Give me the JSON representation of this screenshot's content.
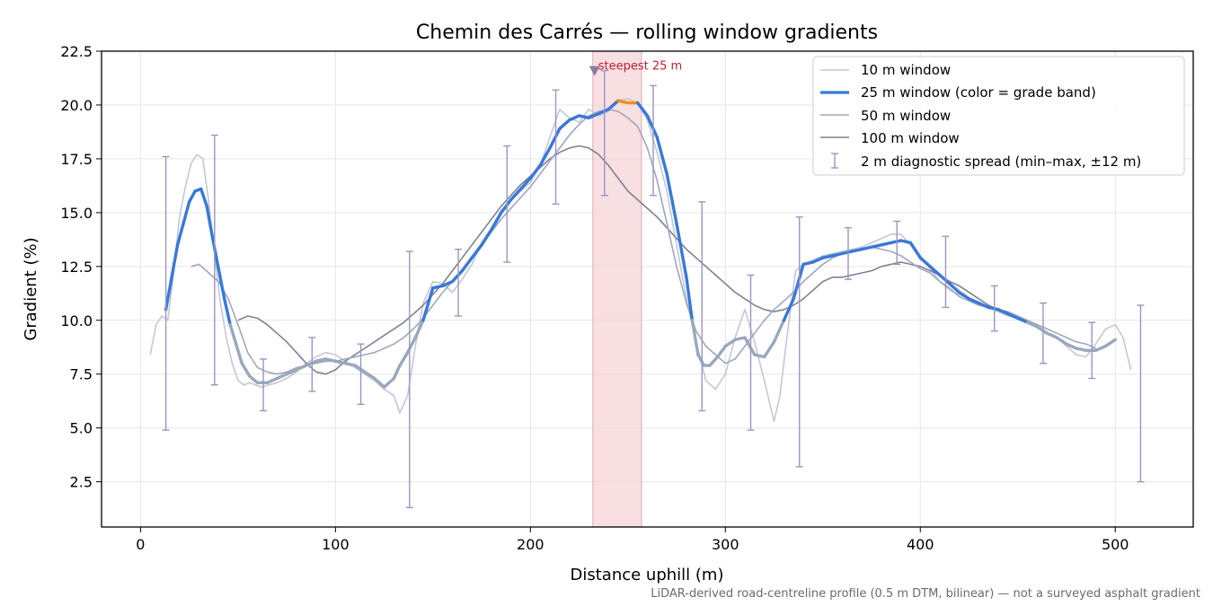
{
  "chart_data": {
    "type": "line",
    "title": "Chemin des Carrés — rolling window gradients",
    "xlabel": "Distance uphill (m)",
    "ylabel": "Gradient (%)",
    "xlim": [
      -20,
      540
    ],
    "ylim": [
      0.4,
      22.5
    ],
    "xticks": [
      0,
      100,
      200,
      300,
      400,
      500
    ],
    "yticks": [
      2.5,
      5.0,
      7.5,
      10.0,
      12.5,
      15.0,
      17.5,
      20.0,
      22.5
    ],
    "grid": true,
    "legend_position": "top-right",
    "caption": "LiDAR-derived road-centreline profile (0.5 m DTM, bilinear) — not a surveyed asphalt gradient",
    "colors": {
      "w10": "#c2c8d4",
      "w25_steep": "#3a78d8",
      "w25_moderate": "#9aa8bd",
      "w25_peak": "#f0900a",
      "w50": "#9ea8bc",
      "w100": "#7e8292",
      "errorbar": "#9a96c0",
      "highlight": "#f4d4d8",
      "highlight_edge": "#e6aab4",
      "annotation": "#c0202e",
      "marker": "#8e7aa0"
    },
    "highlight_band": {
      "x0": 232,
      "x1": 257,
      "label": "steepest 25 m",
      "marker_y": 21.6
    },
    "series": [
      {
        "name": "10 m window",
        "key": "w10",
        "x": [
          5,
          8,
          11,
          14,
          17,
          20,
          23,
          26,
          29,
          32,
          35,
          38,
          41,
          44,
          47,
          50,
          53,
          56,
          59,
          62,
          66,
          70,
          75,
          80,
          85,
          90,
          95,
          100,
          105,
          110,
          115,
          120,
          125,
          130,
          133,
          137,
          141,
          145,
          150,
          155,
          160,
          165,
          170,
          175,
          180,
          185,
          190,
          195,
          200,
          205,
          210,
          215,
          220,
          225,
          230,
          235,
          240,
          245,
          250,
          255,
          260,
          265,
          270,
          275,
          280,
          285,
          290,
          295,
          300,
          305,
          310,
          315,
          320,
          325,
          328,
          332,
          336,
          340,
          345,
          350,
          355,
          360,
          365,
          370,
          375,
          380,
          385,
          390,
          395,
          400,
          405,
          410,
          415,
          420,
          425,
          430,
          435,
          440,
          445,
          450,
          455,
          460,
          465,
          470,
          475,
          480,
          485,
          490,
          495,
          500,
          504,
          508
        ],
        "y": [
          8.4,
          9.8,
          10.2,
          10.0,
          12.2,
          14.8,
          16.2,
          17.3,
          17.7,
          17.5,
          15.5,
          13.0,
          10.8,
          9.2,
          8.0,
          7.2,
          7.0,
          7.1,
          7.0,
          6.9,
          7.0,
          7.1,
          7.3,
          7.6,
          8.0,
          8.3,
          8.5,
          8.4,
          8.1,
          7.8,
          7.5,
          7.2,
          6.8,
          6.5,
          5.7,
          6.5,
          8.8,
          10.8,
          11.8,
          11.7,
          11.3,
          11.9,
          12.6,
          13.6,
          14.3,
          15.1,
          15.6,
          16.0,
          16.4,
          17.2,
          18.5,
          19.8,
          19.4,
          19.2,
          19.8,
          19.5,
          19.7,
          20.2,
          20.3,
          20.1,
          19.3,
          17.8,
          16.0,
          13.5,
          11.0,
          9.0,
          7.2,
          6.8,
          7.5,
          9.2,
          10.5,
          9.0,
          7.2,
          5.3,
          6.5,
          9.5,
          12.3,
          12.6,
          12.8,
          13.0,
          13.1,
          13.2,
          13.3,
          13.4,
          13.6,
          13.8,
          14.0,
          14.0,
          13.5,
          13.0,
          12.4,
          11.8,
          11.4,
          11.2,
          11.0,
          10.8,
          10.6,
          10.4,
          10.2,
          10.1,
          9.9,
          9.7,
          9.4,
          9.2,
          8.8,
          8.4,
          8.3,
          8.9,
          9.6,
          9.8,
          9.2,
          7.7
        ]
      },
      {
        "name": "25 m window (color = grade band)",
        "key": "w25",
        "x": [
          13,
          16,
          19,
          22,
          25,
          28,
          31,
          34,
          37,
          40,
          43,
          46,
          49,
          52,
          56,
          60,
          65,
          70,
          75,
          80,
          85,
          90,
          95,
          100,
          105,
          110,
          115,
          120,
          125,
          130,
          133,
          137,
          141,
          145,
          150,
          155,
          160,
          165,
          170,
          175,
          180,
          185,
          190,
          195,
          200,
          205,
          210,
          215,
          220,
          225,
          230,
          235,
          240,
          245,
          250,
          255,
          260,
          265,
          270,
          275,
          280,
          283,
          286,
          289,
          292,
          296,
          300,
          305,
          310,
          315,
          320,
          325,
          330,
          335,
          340,
          345,
          350,
          355,
          360,
          365,
          370,
          375,
          380,
          385,
          390,
          395,
          400,
          405,
          410,
          415,
          420,
          425,
          430,
          435,
          440,
          445,
          450,
          455,
          460,
          465,
          470,
          475,
          480,
          485,
          490,
          495,
          500
        ],
        "y": [
          10.5,
          12.0,
          13.5,
          14.5,
          15.5,
          16.0,
          16.1,
          15.3,
          13.8,
          12.4,
          11.0,
          9.8,
          8.9,
          8.0,
          7.4,
          7.1,
          7.1,
          7.3,
          7.5,
          7.7,
          7.9,
          8.1,
          8.2,
          8.1,
          8.0,
          7.9,
          7.6,
          7.3,
          6.9,
          7.3,
          7.9,
          8.5,
          9.2,
          10.0,
          11.5,
          11.6,
          11.8,
          12.3,
          12.9,
          13.5,
          14.2,
          15.0,
          15.6,
          16.1,
          16.6,
          17.2,
          18.0,
          18.9,
          19.3,
          19.5,
          19.4,
          19.6,
          19.8,
          20.2,
          20.1,
          20.1,
          19.5,
          18.5,
          16.8,
          14.5,
          12.0,
          10.0,
          8.4,
          7.9,
          7.9,
          8.3,
          8.8,
          9.1,
          9.2,
          8.4,
          8.3,
          9.0,
          10.0,
          11.0,
          12.6,
          12.7,
          12.9,
          13.0,
          13.1,
          13.2,
          13.3,
          13.4,
          13.5,
          13.6,
          13.7,
          13.6,
          12.9,
          12.5,
          12.1,
          11.7,
          11.3,
          11.0,
          10.8,
          10.6,
          10.5,
          10.3,
          10.1,
          9.9,
          9.7,
          9.4,
          9.2,
          8.9,
          8.7,
          8.6,
          8.6,
          8.8,
          9.1
        ]
      },
      {
        "name": "50 m window",
        "key": "w50",
        "x": [
          26,
          30,
          35,
          40,
          45,
          50,
          55,
          60,
          65,
          70,
          75,
          80,
          85,
          90,
          95,
          100,
          105,
          110,
          115,
          120,
          125,
          130,
          135,
          140,
          145,
          150,
          155,
          160,
          165,
          170,
          175,
          180,
          185,
          190,
          195,
          200,
          205,
          210,
          215,
          220,
          225,
          230,
          235,
          240,
          245,
          250,
          255,
          260,
          265,
          270,
          275,
          280,
          285,
          290,
          295,
          300,
          305,
          310,
          315,
          320,
          325,
          330,
          335,
          340,
          345,
          350,
          355,
          360,
          365,
          370,
          375,
          380,
          385,
          390,
          395,
          400,
          405,
          410,
          415,
          420,
          425,
          430,
          435,
          440,
          445,
          450,
          455,
          460,
          465,
          470,
          475,
          480,
          485,
          490
        ],
        "y": [
          12.5,
          12.6,
          12.2,
          11.8,
          11.0,
          9.8,
          8.5,
          7.8,
          7.6,
          7.5,
          7.6,
          7.8,
          7.9,
          8.0,
          8.1,
          8.1,
          8.2,
          8.3,
          8.4,
          8.5,
          8.7,
          8.9,
          9.2,
          9.6,
          10.1,
          10.7,
          11.3,
          11.8,
          12.3,
          12.9,
          13.5,
          14.1,
          14.7,
          15.2,
          15.7,
          16.2,
          16.8,
          17.4,
          18.0,
          18.6,
          19.1,
          19.5,
          19.7,
          19.8,
          19.7,
          19.4,
          19.0,
          18.0,
          16.5,
          14.5,
          12.5,
          10.8,
          9.5,
          8.8,
          8.4,
          8.0,
          8.2,
          8.8,
          9.4,
          10.0,
          10.5,
          10.9,
          11.3,
          11.8,
          12.2,
          12.6,
          12.9,
          13.1,
          13.2,
          13.3,
          13.4,
          13.3,
          13.2,
          13.0,
          12.7,
          12.4,
          12.2,
          11.8,
          11.5,
          11.1,
          10.9,
          10.7,
          10.6,
          10.5,
          10.4,
          10.2,
          10.0,
          9.8,
          9.6,
          9.4,
          9.2,
          9.0,
          8.9,
          8.7
        ]
      },
      {
        "name": "100 m window",
        "key": "w100",
        "x": [
          50,
          55,
          60,
          65,
          70,
          75,
          80,
          85,
          90,
          95,
          100,
          105,
          110,
          115,
          120,
          125,
          130,
          135,
          140,
          145,
          150,
          155,
          160,
          165,
          170,
          175,
          180,
          185,
          190,
          195,
          200,
          205,
          210,
          215,
          220,
          225,
          230,
          235,
          240,
          245,
          250,
          255,
          260,
          265,
          270,
          275,
          280,
          285,
          290,
          295,
          300,
          305,
          310,
          315,
          320,
          325,
          330,
          335,
          340,
          345,
          350,
          355,
          360,
          365,
          370,
          375,
          380,
          385,
          390,
          395,
          400,
          405,
          410,
          415,
          420,
          425,
          430,
          435,
          440,
          445,
          450,
          455,
          460
        ],
        "y": [
          10.0,
          10.2,
          10.1,
          9.8,
          9.4,
          9.0,
          8.5,
          8.0,
          7.6,
          7.5,
          7.7,
          8.1,
          8.4,
          8.7,
          9.0,
          9.3,
          9.6,
          9.9,
          10.3,
          10.7,
          11.2,
          11.7,
          12.3,
          12.9,
          13.5,
          14.1,
          14.7,
          15.3,
          15.8,
          16.3,
          16.7,
          17.1,
          17.5,
          17.8,
          18.0,
          18.1,
          18.0,
          17.7,
          17.2,
          16.6,
          16.0,
          15.6,
          15.2,
          14.8,
          14.3,
          13.8,
          13.3,
          12.9,
          12.5,
          12.1,
          11.7,
          11.3,
          11.0,
          10.7,
          10.5,
          10.4,
          10.5,
          10.7,
          11.0,
          11.4,
          11.8,
          12.0,
          12.0,
          12.1,
          12.2,
          12.3,
          12.5,
          12.6,
          12.7,
          12.6,
          12.5,
          12.3,
          12.1,
          11.8,
          11.6,
          11.3,
          11.0,
          10.7,
          10.5,
          10.3,
          10.1,
          9.9,
          9.7
        ]
      }
    ],
    "errorbars": {
      "name": "2 m diagnostic spread (min–max, ±12 m)",
      "points": [
        {
          "x": 13,
          "low": 4.9,
          "high": 17.6
        },
        {
          "x": 38,
          "low": 7.0,
          "high": 18.6
        },
        {
          "x": 63,
          "low": 5.8,
          "high": 8.2
        },
        {
          "x": 88,
          "low": 6.7,
          "high": 9.2
        },
        {
          "x": 113,
          "low": 6.1,
          "high": 8.9
        },
        {
          "x": 138,
          "low": 1.3,
          "high": 13.2
        },
        {
          "x": 163,
          "low": 10.2,
          "high": 13.3
        },
        {
          "x": 188,
          "low": 12.7,
          "high": 18.1
        },
        {
          "x": 213,
          "low": 15.4,
          "high": 20.7
        },
        {
          "x": 238,
          "low": 15.8,
          "high": 21.6
        },
        {
          "x": 263,
          "low": 15.8,
          "high": 20.9
        },
        {
          "x": 288,
          "low": 5.8,
          "high": 15.5
        },
        {
          "x": 313,
          "low": 4.9,
          "high": 12.1
        },
        {
          "x": 338,
          "low": 3.2,
          "high": 14.8
        },
        {
          "x": 363,
          "low": 11.9,
          "high": 14.3
        },
        {
          "x": 388,
          "low": 12.6,
          "high": 14.6
        },
        {
          "x": 413,
          "low": 10.6,
          "high": 13.9
        },
        {
          "x": 438,
          "low": 9.5,
          "high": 11.6
        },
        {
          "x": 463,
          "low": 8.0,
          "high": 10.8
        },
        {
          "x": 488,
          "low": 7.3,
          "high": 9.9
        },
        {
          "x": 513,
          "low": 2.5,
          "high": 10.7
        }
      ]
    }
  }
}
